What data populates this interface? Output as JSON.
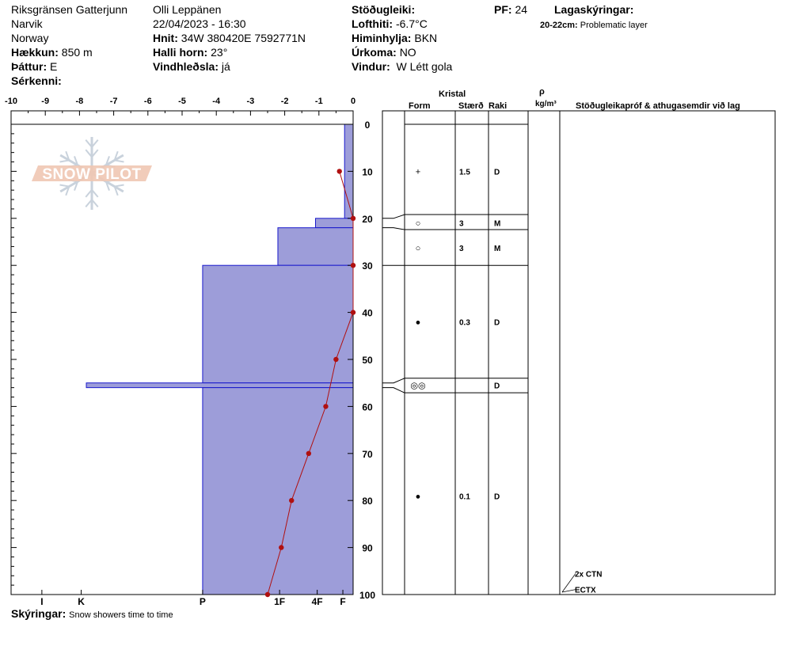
{
  "header": {
    "location": "Riksgränsen Gatterjunn",
    "region": "Narvik",
    "country": "Norway",
    "elevation_label": "Hækkun:",
    "elevation": "850 m",
    "aspect_label": "Þáttur:",
    "aspect": "E",
    "features_label": "Sérkenni:",
    "observer": "Olli Leppänen",
    "datetime": "22/04/2023 - 16:30",
    "coords_label": "Hnit:",
    "coords": "34W 380420E 7592771N",
    "slope_label": "Halli horn:",
    "slope": "23°",
    "wind_loading_label": "Vindhleðsla:",
    "wind_loading": "já",
    "stability_label": "Stöðugleiki:",
    "air_temp_label": "Lofthiti:",
    "air_temp": "-6.7°C",
    "sky_label": "Himinhylja:",
    "sky": "BKN",
    "precip_label": "Úrkoma:",
    "precip": "NO",
    "wind_label": "Vindur:",
    "wind": "W Létt gola",
    "pf_label": "PF:",
    "pf": "24",
    "layer_notes_label": "Lagaskýringar:",
    "layer_note_depth": "20-22cm:",
    "layer_note_text": "Problematic layer",
    "comments_label": "Skýringar:",
    "comments": "Snow showers time to time"
  },
  "logo_text": "SNOW PILOT",
  "table_headers": {
    "crystal": "Kristal",
    "form": "Form",
    "size": "Stærð",
    "wetness": "Raki",
    "rho": "ρ",
    "density_unit": "kg/m³",
    "tests": "Stöðugleikapróf & athugasemdir við lag"
  },
  "chart_data": {
    "type": "snow_profile",
    "temp_axis": {
      "min": -10,
      "max": 0,
      "ticks": [
        "-10",
        "-9",
        "-8",
        "-7",
        "-6",
        "-5",
        "-4",
        "-3",
        "-2",
        "-1",
        "0"
      ]
    },
    "depth_axis": {
      "min": 0,
      "max": 100,
      "ticks": [
        "0",
        "10",
        "20",
        "30",
        "40",
        "50",
        "60",
        "70",
        "80",
        "90",
        "100"
      ]
    },
    "hardness_ticks": [
      "I",
      "K",
      "P",
      "1F",
      "4F",
      "F"
    ],
    "hardness_profile": [
      {
        "top": 0,
        "bottom": 20,
        "temp_equiv": -0.25
      },
      {
        "top": 20,
        "bottom": 22,
        "temp_equiv": -1.1
      },
      {
        "top": 22,
        "bottom": 30,
        "temp_equiv": -2.2
      },
      {
        "top": 30,
        "bottom": 55,
        "temp_equiv": -4.4
      },
      {
        "top": 55,
        "bottom": 56,
        "temp_equiv": -7.8
      },
      {
        "top": 56,
        "bottom": 100,
        "temp_equiv": -4.4
      }
    ],
    "temperature_profile": [
      {
        "depth": 10,
        "temp": -0.4
      },
      {
        "depth": 20,
        "temp": 0
      },
      {
        "depth": 30,
        "temp": 0
      },
      {
        "depth": 40,
        "temp": 0
      },
      {
        "depth": 50,
        "temp": -0.5
      },
      {
        "depth": 60,
        "temp": -0.8
      },
      {
        "depth": 70,
        "temp": -1.3
      },
      {
        "depth": 80,
        "temp": -1.8
      },
      {
        "depth": 90,
        "temp": -2.1
      },
      {
        "depth": 100,
        "temp": -2.5
      }
    ],
    "layer_boundaries": [
      19.2,
      22.4,
      30,
      54,
      57.1
    ],
    "layer_boundary_true": [
      20,
      22,
      30,
      55,
      56
    ],
    "layers": [
      {
        "mid": 10,
        "form": "+",
        "size": "1.5",
        "wetness": "D"
      },
      {
        "mid": 21,
        "form": "○",
        "size": "3",
        "wetness": "M"
      },
      {
        "mid": 26.3,
        "form": "○",
        "size": "3",
        "wetness": "M"
      },
      {
        "mid": 42,
        "form": "●",
        "size": "0.3",
        "wetness": "D"
      },
      {
        "mid": 55.5,
        "form": "◎◎",
        "size": "",
        "wetness": "D"
      },
      {
        "mid": 79,
        "form": "●",
        "size": "0.1",
        "wetness": "D"
      }
    ],
    "tests": [
      {
        "label": "2x CTN",
        "depth": 96.2
      },
      {
        "label": "ECTX",
        "depth": 99.6
      }
    ],
    "colors": {
      "hardness_fill": "#9d9dd9",
      "hardness_stroke": "#1a1acc",
      "temperature": "#b01010"
    }
  }
}
